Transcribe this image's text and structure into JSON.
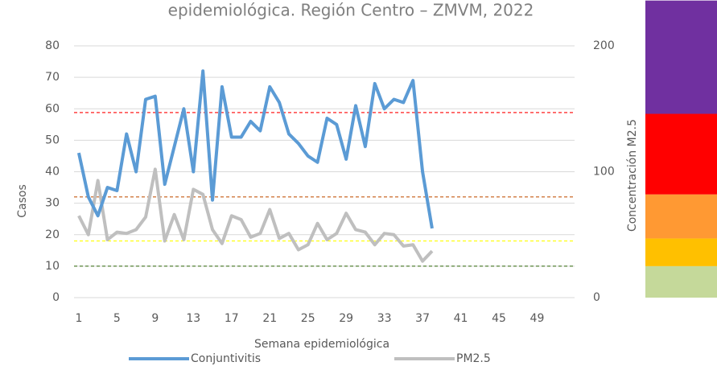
{
  "chart_data": {
    "type": "line",
    "title": "epidemiológica. Región Centro – ZMVM, 2022",
    "x_label": "Semana epidemiológica",
    "y_label": "Casos",
    "y2_label": "Concentración M2.5",
    "x": [
      1,
      2,
      3,
      4,
      5,
      6,
      7,
      8,
      9,
      10,
      11,
      12,
      13,
      14,
      15,
      16,
      17,
      18,
      19,
      20,
      21,
      22,
      23,
      24,
      25,
      26,
      27,
      28,
      29,
      30,
      31,
      32,
      33,
      34,
      35,
      36,
      37,
      38
    ],
    "xlim": [
      0.5,
      52.5
    ],
    "xticks": [
      1,
      5,
      9,
      13,
      17,
      21,
      25,
      29,
      33,
      37,
      41,
      45,
      49
    ],
    "ylim": [
      0,
      80
    ],
    "yticks": [
      0,
      10,
      20,
      30,
      40,
      50,
      60,
      70,
      80
    ],
    "y2lim": [
      0,
      200
    ],
    "y2ticks": [
      0,
      100,
      200
    ],
    "series": [
      {
        "name": "Conjuntivitis",
        "color": "#5b9bd5",
        "values": [
          46,
          32,
          26,
          35,
          34,
          52,
          40,
          63,
          64,
          36,
          48,
          60,
          40,
          72,
          31,
          67,
          51,
          51,
          56,
          53,
          67,
          62,
          52,
          49,
          45,
          43,
          57,
          55,
          44,
          61,
          48,
          68,
          60,
          63,
          62,
          69,
          40,
          22
        ]
      },
      {
        "name": "PM2.5",
        "color": "#bfbfbf",
        "axis": "y2",
        "values": [
          65,
          50,
          93,
          46,
          52,
          51,
          54,
          64,
          102,
          45,
          66,
          46,
          86,
          82,
          54,
          43,
          65,
          62,
          48,
          51,
          70,
          47,
          51,
          38,
          42,
          59,
          46,
          51,
          67,
          54,
          52,
          42,
          51,
          50,
          41,
          42,
          29,
          37
        ]
      }
    ],
    "thresholds": [
      {
        "value": 25,
        "color": "#548235"
      },
      {
        "value": 45,
        "color": "#ffff00"
      },
      {
        "value": 80,
        "color": "#c55a11"
      },
      {
        "value": 147,
        "color": "#ff0000"
      }
    ],
    "bands": [
      {
        "from": 0,
        "to": 25,
        "color": "#c5d99a"
      },
      {
        "from": 25,
        "to": 47,
        "color": "#ffc000"
      },
      {
        "from": 47,
        "to": 82,
        "color": "#ff9933"
      },
      {
        "from": 82,
        "to": 146,
        "color": "#ff0000"
      },
      {
        "from": 146,
        "to": 236,
        "color": "#7030a0"
      }
    ]
  }
}
